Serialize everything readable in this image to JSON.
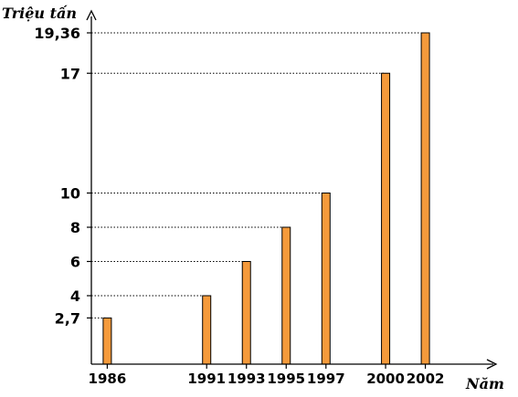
{
  "chart_data": {
    "type": "bar",
    "ylabel": "Triệu tấn",
    "xlabel": "Năm",
    "x": [
      1986,
      1991,
      1993,
      1995,
      1997,
      2000,
      2002
    ],
    "x_labels": [
      "1986",
      "1991",
      "1993",
      "1995",
      "1997",
      "2000",
      "2002"
    ],
    "values": [
      2.7,
      4,
      6,
      8,
      10,
      17,
      19.36
    ],
    "value_labels": [
      "2,7",
      "4",
      "6",
      "8",
      "10",
      "17",
      "19,36"
    ],
    "ylim": [
      0,
      21
    ],
    "xlim": [
      1985.2,
      2004.5
    ],
    "bar_color": "#f59a3b",
    "dotted_guides": true,
    "grid": false,
    "legend": false
  }
}
